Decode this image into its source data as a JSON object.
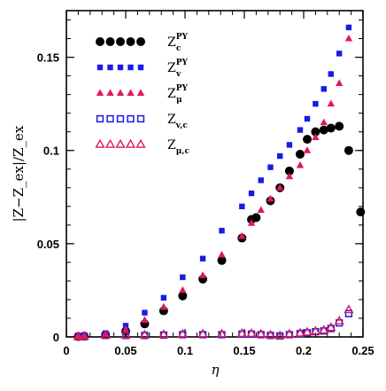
{
  "chart_data": {
    "type": "scatter",
    "title": "",
    "xlabel": "η",
    "ylabel": "|Z−Z_ex|/Z_ex",
    "xlim": [
      0,
      0.25
    ],
    "ylim": [
      0,
      0.175
    ],
    "xticks": [
      0,
      0.05,
      0.1,
      0.15,
      0.2,
      0.25
    ],
    "yticks": [
      0,
      0.05,
      0.1,
      0.15
    ],
    "xtick_labels": [
      "0",
      "0.05",
      "0.1",
      "0.15",
      "0.2",
      "0.25"
    ],
    "ytick_labels": [
      "0",
      "0.05",
      "0.1",
      "0.15"
    ],
    "grid": false,
    "legend_position": "top-left",
    "series": [
      {
        "name": "Z_c^PY",
        "label_main": "Z",
        "label_sup": "PY",
        "label_sub": "c",
        "marker": "filled-circle",
        "color": "#000000",
        "x": [
          0.01,
          0.015,
          0.033,
          0.05,
          0.066,
          0.082,
          0.098,
          0.115,
          0.131,
          0.148,
          0.156,
          0.16,
          0.172,
          0.18,
          0.188,
          0.197,
          0.203,
          0.21,
          0.217,
          0.223,
          0.23,
          0.238,
          0.248
        ],
        "y": [
          0.0002,
          0.0004,
          0.0012,
          0.003,
          0.007,
          0.014,
          0.022,
          0.031,
          0.041,
          0.053,
          0.063,
          0.064,
          0.073,
          0.08,
          0.089,
          0.098,
          0.106,
          0.11,
          0.111,
          0.112,
          0.113,
          0.1,
          0.067
        ]
      },
      {
        "name": "Z_v^PY",
        "label_main": "Z",
        "label_sup": "PY",
        "label_sub": "v",
        "marker": "filled-square",
        "color": "#1a1ae6",
        "x": [
          0.01,
          0.015,
          0.033,
          0.05,
          0.066,
          0.082,
          0.098,
          0.115,
          0.131,
          0.148,
          0.156,
          0.164,
          0.172,
          0.18,
          0.188,
          0.197,
          0.203,
          0.21,
          0.217,
          0.223,
          0.23,
          0.238
        ],
        "y": [
          0.0003,
          0.0008,
          0.002,
          0.006,
          0.013,
          0.021,
          0.032,
          0.042,
          0.057,
          0.07,
          0.077,
          0.084,
          0.091,
          0.097,
          0.103,
          0.111,
          0.117,
          0.125,
          0.133,
          0.141,
          0.152,
          0.166
        ]
      },
      {
        "name": "Z_μ^PY",
        "label_main": "Z",
        "label_sup": "PY",
        "label_sub": "μ",
        "marker": "filled-triangle",
        "color": "#e0185c",
        "x": [
          0.01,
          0.015,
          0.033,
          0.05,
          0.066,
          0.082,
          0.098,
          0.115,
          0.131,
          0.148,
          0.156,
          0.164,
          0.172,
          0.18,
          0.188,
          0.197,
          0.203,
          0.21,
          0.217,
          0.223,
          0.23,
          0.238
        ],
        "y": [
          0.0002,
          0.0004,
          0.0015,
          0.004,
          0.009,
          0.016,
          0.025,
          0.033,
          0.044,
          0.054,
          0.061,
          0.068,
          0.074,
          0.08,
          0.086,
          0.092,
          0.1,
          0.107,
          0.115,
          0.125,
          0.136,
          0.16
        ]
      },
      {
        "name": "Z_v,c",
        "label_main": "Z",
        "label_sup": "",
        "label_sub": "v,c",
        "marker": "open-square",
        "color": "#1a1ae6",
        "x": [
          0.01,
          0.015,
          0.033,
          0.05,
          0.066,
          0.082,
          0.098,
          0.115,
          0.131,
          0.148,
          0.156,
          0.164,
          0.172,
          0.18,
          0.188,
          0.197,
          0.203,
          0.21,
          0.217,
          0.223,
          0.23,
          0.238
        ],
        "y": [
          0.0001,
          0.0002,
          0.0008,
          0.0008,
          0.0008,
          0.001,
          0.0012,
          0.0012,
          0.0012,
          0.0015,
          0.0015,
          0.0012,
          0.0008,
          0.0005,
          0.0012,
          0.0018,
          0.0022,
          0.0028,
          0.0032,
          0.0045,
          0.0075,
          0.0125
        ]
      },
      {
        "name": "Z_μ,c",
        "label_main": "Z",
        "label_sup": "",
        "label_sub": "μ,c",
        "marker": "open-triangle",
        "color": "#e0185c",
        "x": [
          0.01,
          0.015,
          0.033,
          0.05,
          0.066,
          0.082,
          0.098,
          0.115,
          0.131,
          0.148,
          0.156,
          0.164,
          0.172,
          0.18,
          0.188,
          0.197,
          0.203,
          0.21,
          0.217,
          0.223,
          0.23,
          0.238
        ],
        "y": [
          0.0001,
          0.0002,
          0.0009,
          0.001,
          0.001,
          0.0012,
          0.0015,
          0.0015,
          0.0015,
          0.0018,
          0.0018,
          0.0015,
          0.001,
          0.0006,
          0.0015,
          0.002,
          0.0025,
          0.003,
          0.0035,
          0.005,
          0.0085,
          0.0145
        ]
      }
    ]
  }
}
